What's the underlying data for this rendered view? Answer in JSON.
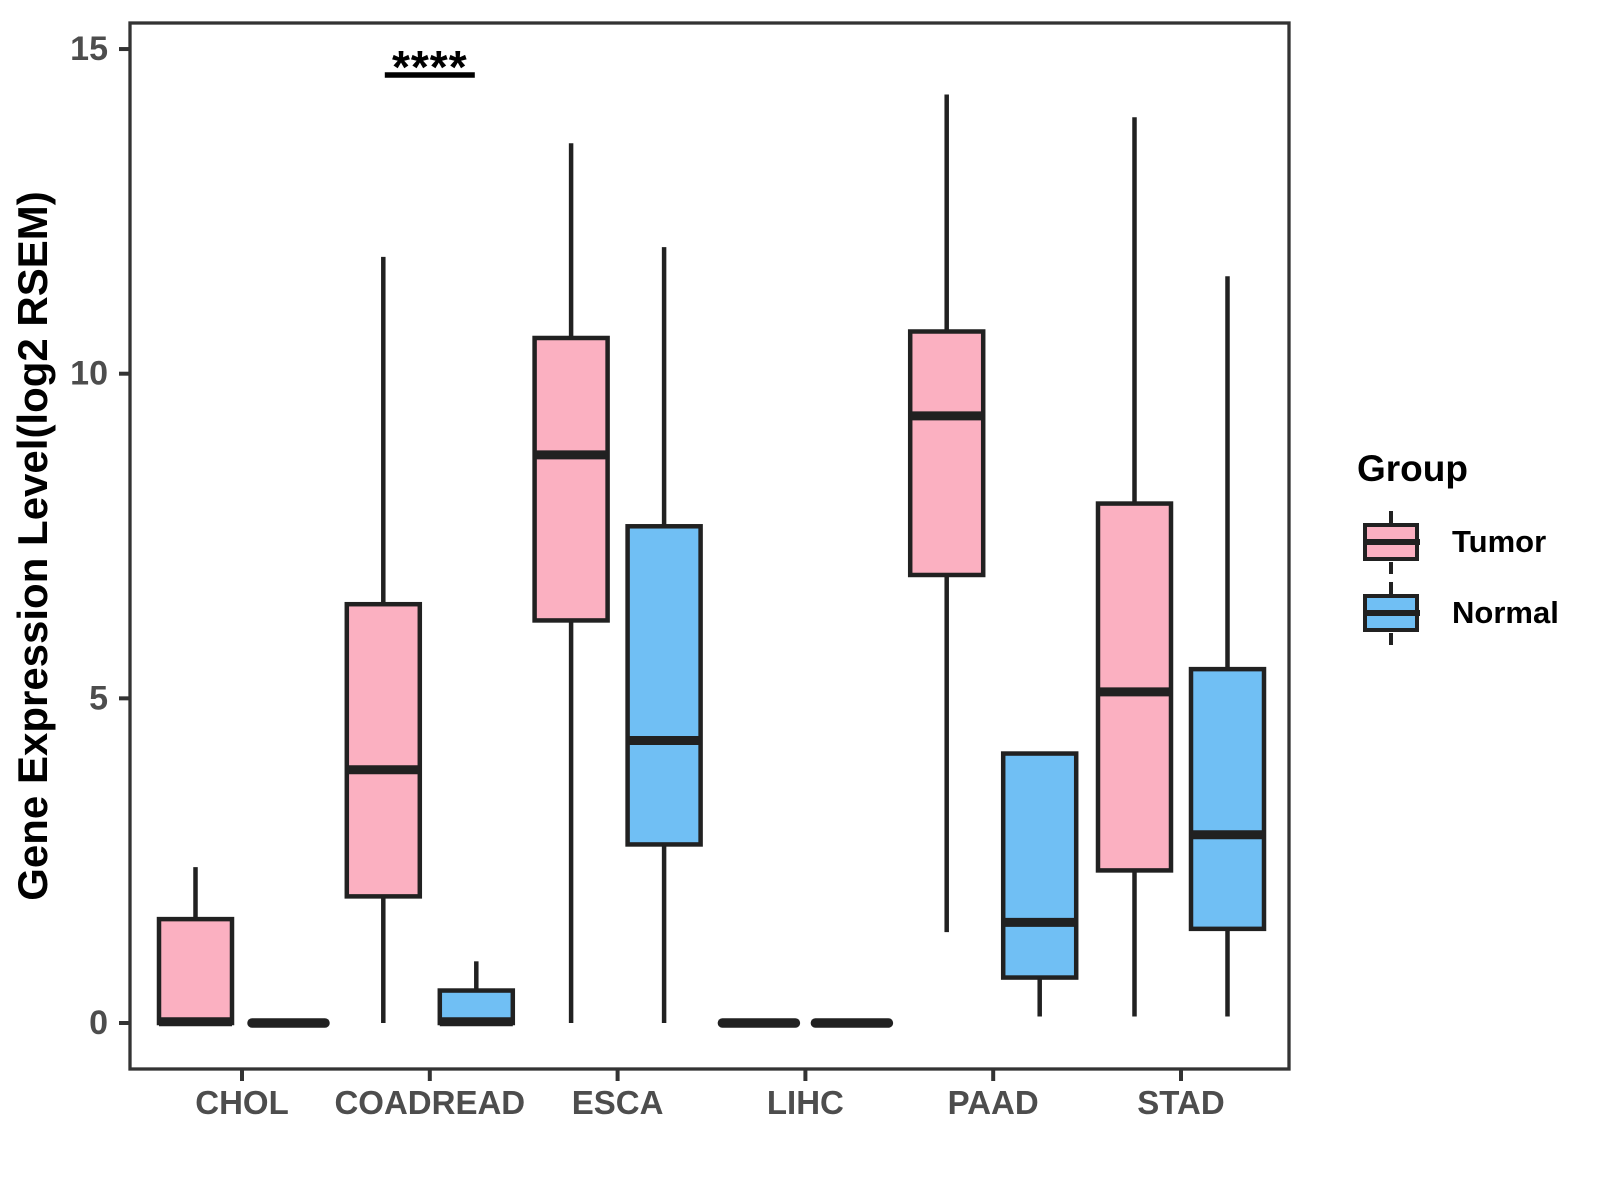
{
  "chart_data": {
    "type": "boxplot",
    "title": "",
    "xlabel": "",
    "ylabel": "Gene Expression Level(log2 RSEM)",
    "ylim": [
      0,
      15
    ],
    "y_ticks": [
      0,
      5,
      10,
      15
    ],
    "grid": false,
    "categories": [
      "CHOL",
      "COADREAD",
      "ESCA",
      "LIHC",
      "PAAD",
      "STAD"
    ],
    "legend": {
      "title": "Group",
      "position": "right",
      "items": [
        {
          "label": "Tumor",
          "color": "#FBB0C1"
        },
        {
          "label": "Normal",
          "color": "#70BFF4"
        }
      ]
    },
    "series": [
      {
        "name": "Tumor",
        "color": "#FBB0C1",
        "boxes": [
          {
            "category": "CHOL",
            "min": 0,
            "q1": 0,
            "median": 0.02,
            "q3": 1.6,
            "max": 2.4
          },
          {
            "category": "COADREAD",
            "min": 0,
            "q1": 1.95,
            "median": 3.9,
            "q3": 6.45,
            "max": 11.8
          },
          {
            "category": "ESCA",
            "min": 0,
            "q1": 6.2,
            "median": 8.75,
            "q3": 10.55,
            "max": 13.55
          },
          {
            "category": "LIHC",
            "min": 0,
            "q1": 0,
            "median": 0,
            "q3": 0,
            "max": 0
          },
          {
            "category": "PAAD",
            "min": 1.4,
            "q1": 6.9,
            "median": 9.35,
            "q3": 10.65,
            "max": 14.3
          },
          {
            "category": "STAD",
            "min": 0.1,
            "q1": 2.35,
            "median": 5.1,
            "q3": 8.0,
            "max": 13.95
          }
        ]
      },
      {
        "name": "Normal",
        "color": "#70BFF4",
        "boxes": [
          {
            "category": "CHOL",
            "min": 0,
            "q1": 0,
            "median": 0,
            "q3": 0,
            "max": 0
          },
          {
            "category": "COADREAD",
            "min": 0,
            "q1": 0,
            "median": 0.02,
            "q3": 0.5,
            "max": 0.95
          },
          {
            "category": "ESCA",
            "min": 0,
            "q1": 2.75,
            "median": 4.35,
            "q3": 7.65,
            "max": 11.95
          },
          {
            "category": "LIHC",
            "min": 0,
            "q1": 0,
            "median": 0,
            "q3": 0,
            "max": 0
          },
          {
            "category": "PAAD",
            "min": 0.1,
            "q1": 0.7,
            "median": 1.55,
            "q3": 4.15,
            "max": 4.15
          },
          {
            "category": "STAD",
            "min": 0.1,
            "q1": 1.45,
            "median": 2.9,
            "q3": 5.45,
            "max": 11.5
          }
        ]
      }
    ],
    "annotations": [
      {
        "text": "****",
        "category": "COADREAD",
        "y": 14.6
      }
    ],
    "colors": {
      "box_stroke": "#212121",
      "axis_stroke": "#333333",
      "tick_label": "#4d4d4d",
      "axis_title": "#000000",
      "annotation": "#000000"
    }
  }
}
